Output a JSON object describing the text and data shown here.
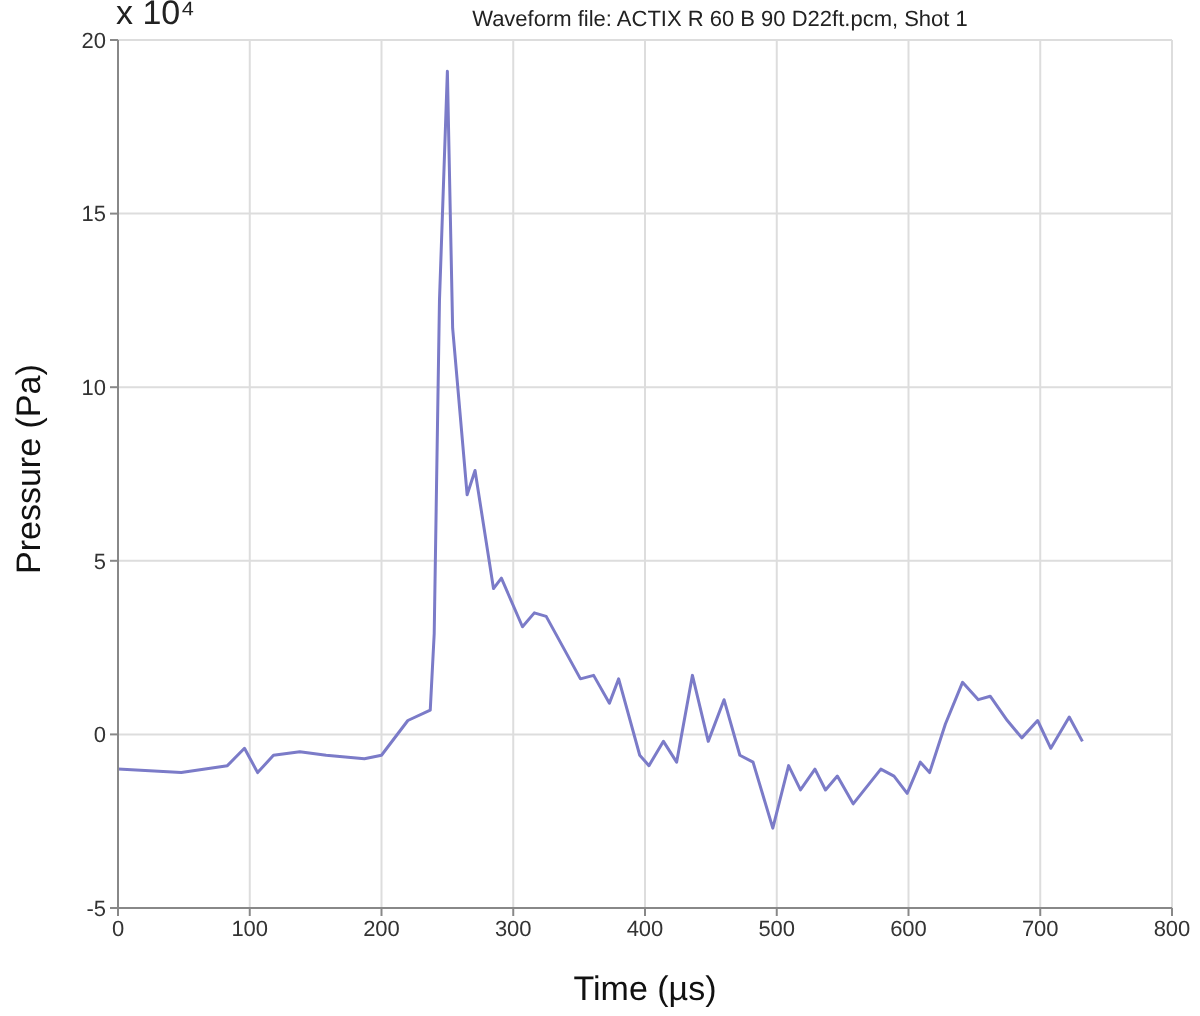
{
  "chart_data": {
    "type": "line",
    "title": "Waveform file: ACTIX R 60 B 90 D22ft.pcm, Shot 1",
    "xlabel": "Time (µs)",
    "ylabel": "Pressure (Pa)",
    "annotations": [
      "x 10⁴"
    ],
    "series": [
      {
        "color": "#7b7bc8",
        "x": [
          0,
          48,
          83,
          96,
          106,
          118,
          138,
          158,
          187,
          200,
          220,
          237,
          240,
          244,
          250,
          254,
          265,
          271,
          285,
          291,
          307,
          316,
          325,
          351,
          361,
          373,
          380,
          396,
          403,
          414,
          424,
          436,
          448,
          460,
          472,
          482,
          497,
          509,
          518,
          529,
          537,
          546,
          558,
          579,
          589,
          599,
          609,
          616,
          628,
          641,
          653,
          662,
          675,
          686,
          698,
          708,
          722,
          732
        ],
        "values": [
          -1,
          -1.1,
          -0.9,
          -0.4,
          -1.1,
          -0.6,
          -0.5,
          -0.6,
          -0.7,
          -0.6,
          0.4,
          0.7,
          2.9,
          12.5,
          19.1,
          11.7,
          6.9,
          7.6,
          4.2,
          4.5,
          3.1,
          3.5,
          3.4,
          1.6,
          1.7,
          0.9,
          1.6,
          -0.6,
          -0.9,
          -0.2,
          -0.8,
          1.7,
          -0.2,
          1,
          -0.6,
          -0.8,
          -2.7,
          -0.9,
          -1.6,
          -1,
          -1.6,
          -1.2,
          -2,
          -1,
          -1.2,
          -1.7,
          -0.8,
          -1.1,
          0.3,
          1.5,
          1,
          1.1,
          0.4,
          -0.1,
          0.4,
          -0.4,
          0.5,
          -0.2
        ]
      }
    ],
    "xlim": [
      0,
      800
    ],
    "xticks": [
      0,
      100,
      200,
      300,
      400,
      500,
      600,
      700,
      800
    ],
    "ylim": [
      -5,
      20
    ],
    "yticks": [
      -5,
      0,
      5,
      10,
      15,
      20
    ],
    "grid": true,
    "marker": "none"
  }
}
